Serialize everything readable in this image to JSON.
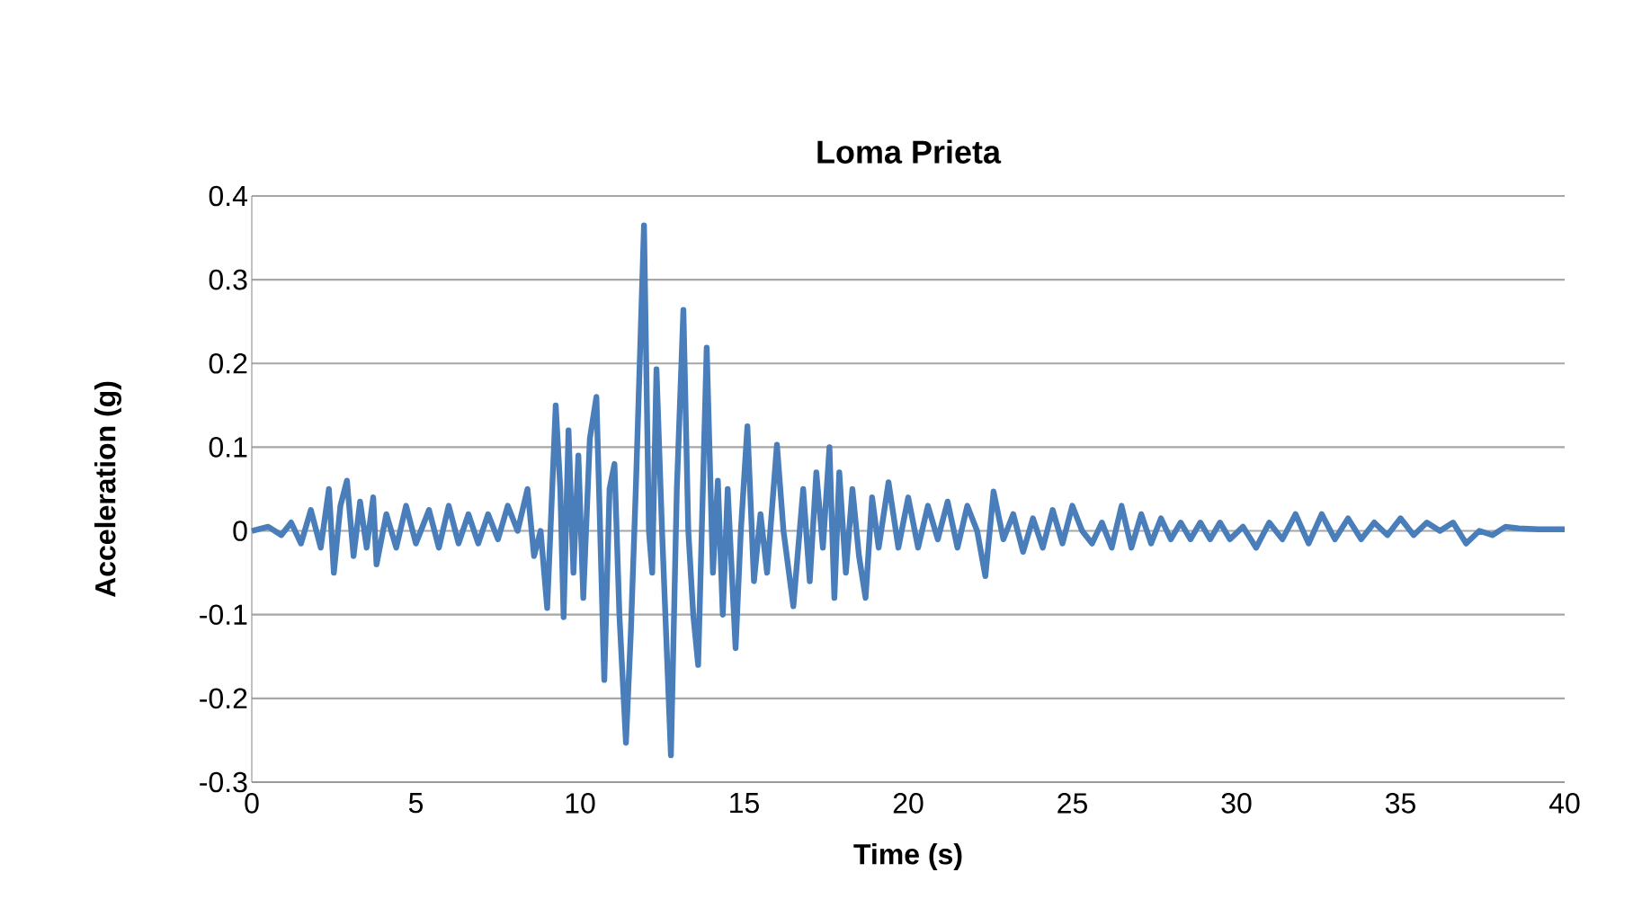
{
  "chart_data": {
    "type": "line",
    "title": "Loma Prieta",
    "xlabel": "Time (s)",
    "ylabel": "Acceleration (g)",
    "xlim": [
      0,
      40
    ],
    "xticks": [
      0,
      5,
      10,
      15,
      20,
      25,
      30,
      35,
      40
    ],
    "ylim": [
      -0.3,
      0.4
    ],
    "yticks": [
      -0.3,
      -0.2,
      -0.1,
      0,
      0.1,
      0.2,
      0.3,
      0.4
    ],
    "grid": "y",
    "series": [
      {
        "color": "#4a7ebb",
        "x": [
          0,
          0.5,
          0.9,
          1.2,
          1.5,
          1.8,
          2.1,
          2.35,
          2.5,
          2.7,
          2.9,
          3.1,
          3.3,
          3.5,
          3.7,
          3.8,
          4.1,
          4.4,
          4.7,
          5.0,
          5.4,
          5.7,
          6.0,
          6.3,
          6.6,
          6.9,
          7.2,
          7.5,
          7.8,
          8.1,
          8.4,
          8.6,
          8.8,
          9.0,
          9.1,
          9.26,
          9.4,
          9.5,
          9.65,
          9.8,
          9.95,
          10.1,
          10.3,
          10.5,
          10.6,
          10.74,
          10.9,
          11.05,
          11.2,
          11.4,
          11.55,
          11.7,
          11.95,
          12.1,
          12.2,
          12.33,
          12.5,
          12.77,
          12.95,
          13.15,
          13.3,
          13.45,
          13.6,
          13.86,
          14.05,
          14.2,
          14.35,
          14.5,
          14.74,
          14.9,
          15.1,
          15.3,
          15.5,
          15.7,
          16.0,
          16.2,
          16.5,
          16.8,
          17.0,
          17.2,
          17.4,
          17.6,
          17.75,
          17.9,
          18.1,
          18.3,
          18.5,
          18.7,
          18.9,
          19.1,
          19.4,
          19.7,
          20.0,
          20.3,
          20.6,
          20.9,
          21.2,
          21.5,
          21.8,
          22.1,
          22.35,
          22.6,
          22.9,
          23.2,
          23.5,
          23.8,
          24.1,
          24.4,
          24.7,
          25.0,
          25.3,
          25.6,
          25.9,
          26.2,
          26.5,
          26.8,
          27.1,
          27.4,
          27.7,
          28.0,
          28.3,
          28.6,
          28.9,
          29.2,
          29.5,
          29.8,
          30.2,
          30.6,
          31.0,
          31.4,
          31.8,
          32.2,
          32.6,
          33.0,
          33.4,
          33.8,
          34.2,
          34.6,
          35.0,
          35.4,
          35.8,
          36.2,
          36.6,
          37.0,
          37.4,
          37.8,
          38.2,
          38.6,
          39.2,
          40
        ],
        "values": [
          0,
          0.005,
          -0.005,
          0.01,
          -0.015,
          0.025,
          -0.02,
          0.05,
          -0.05,
          0.03,
          0.06,
          -0.03,
          0.035,
          -0.02,
          0.04,
          -0.04,
          0.02,
          -0.02,
          0.03,
          -0.015,
          0.025,
          -0.02,
          0.03,
          -0.015,
          0.02,
          -0.015,
          0.02,
          -0.01,
          0.03,
          0.0,
          0.05,
          -0.03,
          0.0,
          -0.092,
          0.0,
          0.15,
          0.05,
          -0.103,
          0.12,
          -0.05,
          0.09,
          -0.08,
          0.11,
          0.16,
          0.02,
          -0.178,
          0.05,
          0.08,
          -0.1,
          -0.253,
          -0.12,
          0.05,
          0.365,
          0.0,
          -0.05,
          0.193,
          0.0,
          -0.268,
          0.05,
          0.264,
          0.0,
          -0.1,
          -0.16,
          0.219,
          -0.05,
          0.06,
          -0.1,
          0.05,
          -0.14,
          0.0,
          0.125,
          -0.06,
          0.02,
          -0.05,
          0.103,
          0.0,
          -0.09,
          0.05,
          -0.06,
          0.07,
          -0.02,
          0.1,
          -0.08,
          0.07,
          -0.05,
          0.05,
          -0.03,
          -0.08,
          0.04,
          -0.02,
          0.058,
          -0.02,
          0.04,
          -0.02,
          0.03,
          -0.01,
          0.035,
          -0.02,
          0.03,
          0.0,
          -0.054,
          0.047,
          -0.01,
          0.02,
          -0.025,
          0.015,
          -0.02,
          0.025,
          -0.015,
          0.03,
          0.0,
          -0.015,
          0.01,
          -0.02,
          0.03,
          -0.02,
          0.02,
          -0.015,
          0.015,
          -0.01,
          0.01,
          -0.01,
          0.01,
          -0.01,
          0.01,
          -0.01,
          0.005,
          -0.02,
          0.01,
          -0.01,
          0.02,
          -0.015,
          0.02,
          -0.01,
          0.015,
          -0.01,
          0.01,
          -0.005,
          0.015,
          -0.005,
          0.01,
          0.0,
          0.01,
          -0.015,
          0.0,
          -0.005,
          0.005,
          0.003,
          0.002,
          0.002
        ]
      }
    ]
  }
}
